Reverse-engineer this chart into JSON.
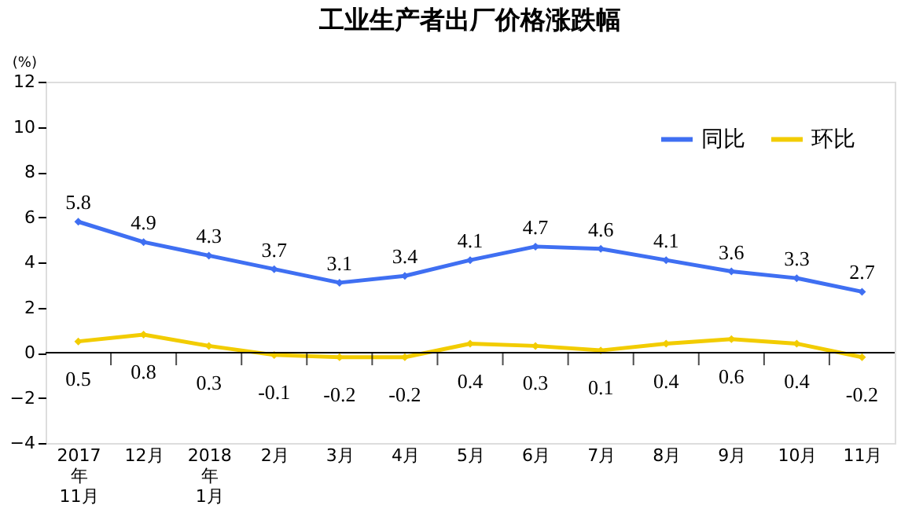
{
  "chart_data": {
    "type": "line",
    "title": "工业生产者出厂价格涨跌幅",
    "ylabel": "(%)",
    "categories": [
      "2017\n年\n11月",
      "12月",
      "2018\n年\n1月",
      "2月",
      "3月",
      "4月",
      "5月",
      "6月",
      "7月",
      "8月",
      "9月",
      "10月",
      "11月"
    ],
    "series": [
      {
        "name": "同比",
        "color": "#3f6ff2",
        "values": [
          5.8,
          4.9,
          4.3,
          3.7,
          3.1,
          3.4,
          4.1,
          4.7,
          4.6,
          4.1,
          3.6,
          3.3,
          2.7
        ]
      },
      {
        "name": "环比",
        "color": "#f2cc00",
        "values": [
          0.5,
          0.8,
          0.3,
          -0.1,
          -0.2,
          -0.2,
          0.4,
          0.3,
          0.1,
          0.4,
          0.6,
          0.4,
          -0.2
        ]
      }
    ],
    "ylim": [
      -4,
      12
    ],
    "yticks": [
      -4,
      -2,
      0,
      2,
      4,
      6,
      8,
      10,
      12
    ],
    "ref_lines": [
      {
        "axis": "y",
        "value": 0
      }
    ],
    "data_labels": true,
    "legend": "top right",
    "marker": "diamond",
    "line_style": "solid",
    "grid": false
  }
}
